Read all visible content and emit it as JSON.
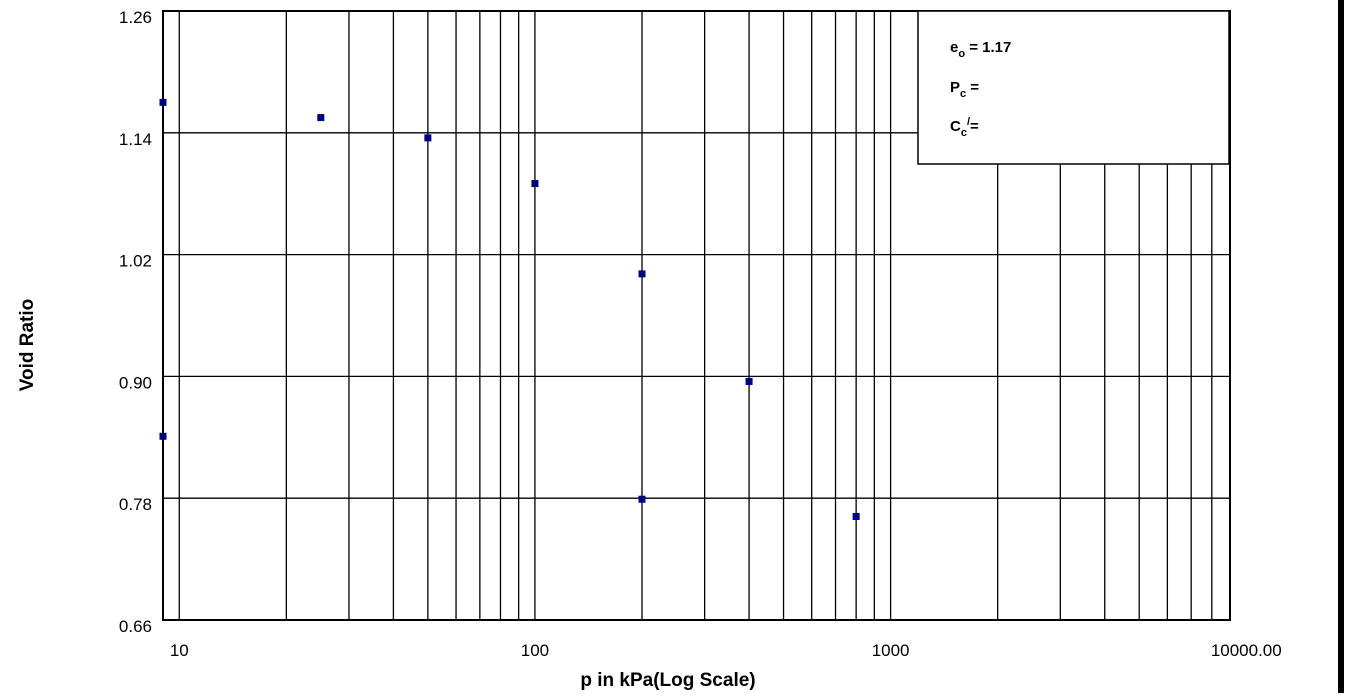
{
  "chart_data": {
    "type": "scatter",
    "xlabel": "p in kPa(Log Scale)",
    "ylabel": "Void Ratio",
    "x_scale": "log",
    "xlim": [
      9,
      9000
    ],
    "ylim": [
      0.66,
      1.26
    ],
    "x_tick_labels": [
      "10",
      "100",
      "1000",
      "10000.00"
    ],
    "y_tick_labels": [
      "1.26",
      "1.14",
      "1.02",
      "0.90",
      "0.78",
      "0.66"
    ],
    "grid": true,
    "marker_color": "#00007f",
    "points": [
      {
        "x": 9,
        "y": 1.17
      },
      {
        "x": 25,
        "y": 1.155
      },
      {
        "x": 50,
        "y": 1.135
      },
      {
        "x": 100,
        "y": 1.09
      },
      {
        "x": 200,
        "y": 1.001
      },
      {
        "x": 400,
        "y": 0.895
      },
      {
        "x": 800,
        "y": 0.762
      },
      {
        "x": 200,
        "y": 0.779
      },
      {
        "x": 9,
        "y": 0.841
      }
    ],
    "legend": {
      "placement": "top-right",
      "lines": [
        {
          "main": "e",
          "sub": "o",
          "rest": " = 1.17"
        },
        {
          "main": "P",
          "sub": "c",
          "rest": " ="
        },
        {
          "main": "C",
          "sub": "c",
          "sup": "/",
          "rest": "="
        }
      ]
    }
  }
}
